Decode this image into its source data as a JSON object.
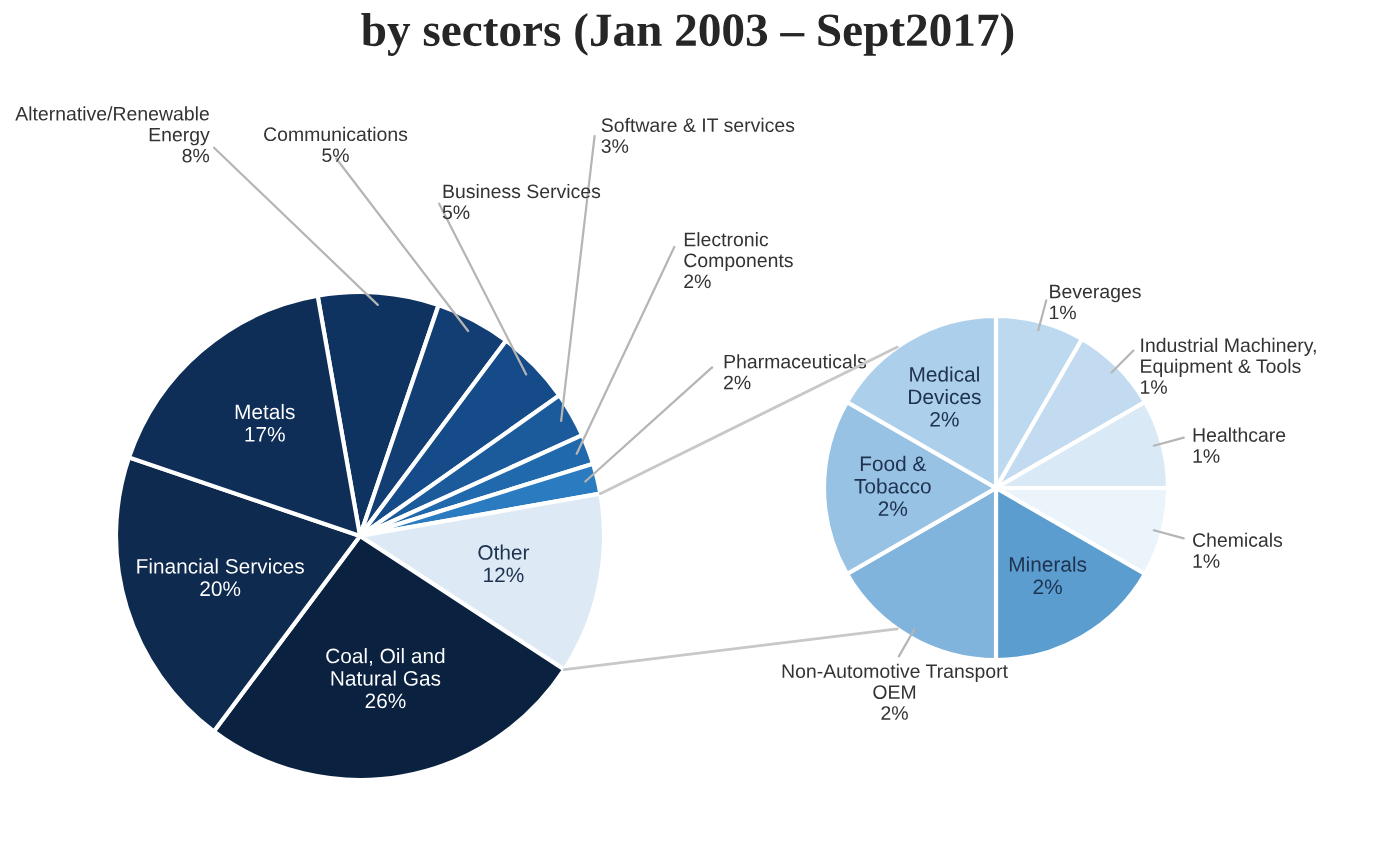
{
  "chart_data": [
    {
      "type": "pie",
      "title": "by sectors (Jan 2003 – Sept2017)",
      "categories": [
        "Alternative/Renewable\nEnergy",
        "Communications",
        "Business Services",
        "Software & IT services",
        "Electronic\nComponents",
        "Pharmaceuticals",
        "Other",
        "Coal, Oil and\nNatural Gas",
        "Financial Services",
        "Metals"
      ],
      "values": [
        8,
        5,
        5,
        3,
        2,
        2,
        12,
        26,
        20,
        17
      ],
      "value_labels": [
        "8%",
        "5%",
        "5%",
        "3%",
        "2%",
        "2%",
        "12%",
        "26%",
        "20%",
        "17%"
      ],
      "colors": [
        "#0f3361",
        "#123e74",
        "#154b88",
        "#1b5b9c",
        "#2169ad",
        "#2a7bbf",
        "#dde9f4",
        "#0b2140",
        "#0f2a4f",
        "#0e2d57"
      ]
    },
    {
      "type": "pie",
      "categories": [
        "Beverages",
        "Industrial Machinery,\nEquipment & Tools",
        "Healthcare",
        "Chemicals",
        "Minerals",
        "Non-Automotive Transport\nOEM",
        "Food &\nTobacco",
        "Medical\nDevices"
      ],
      "values": [
        1,
        1,
        1,
        1,
        2,
        2,
        2,
        2
      ],
      "value_labels": [
        "1%",
        "1%",
        "1%",
        "1%",
        "2%",
        "2%",
        "2%",
        "2%"
      ],
      "colors": [
        "#bcd9f0",
        "#c2dbf0",
        "#d9e9f6",
        "#ebf3fb",
        "#5b9dcf",
        "#80b4dc",
        "#97c2e4",
        "#accfeb"
      ]
    }
  ]
}
